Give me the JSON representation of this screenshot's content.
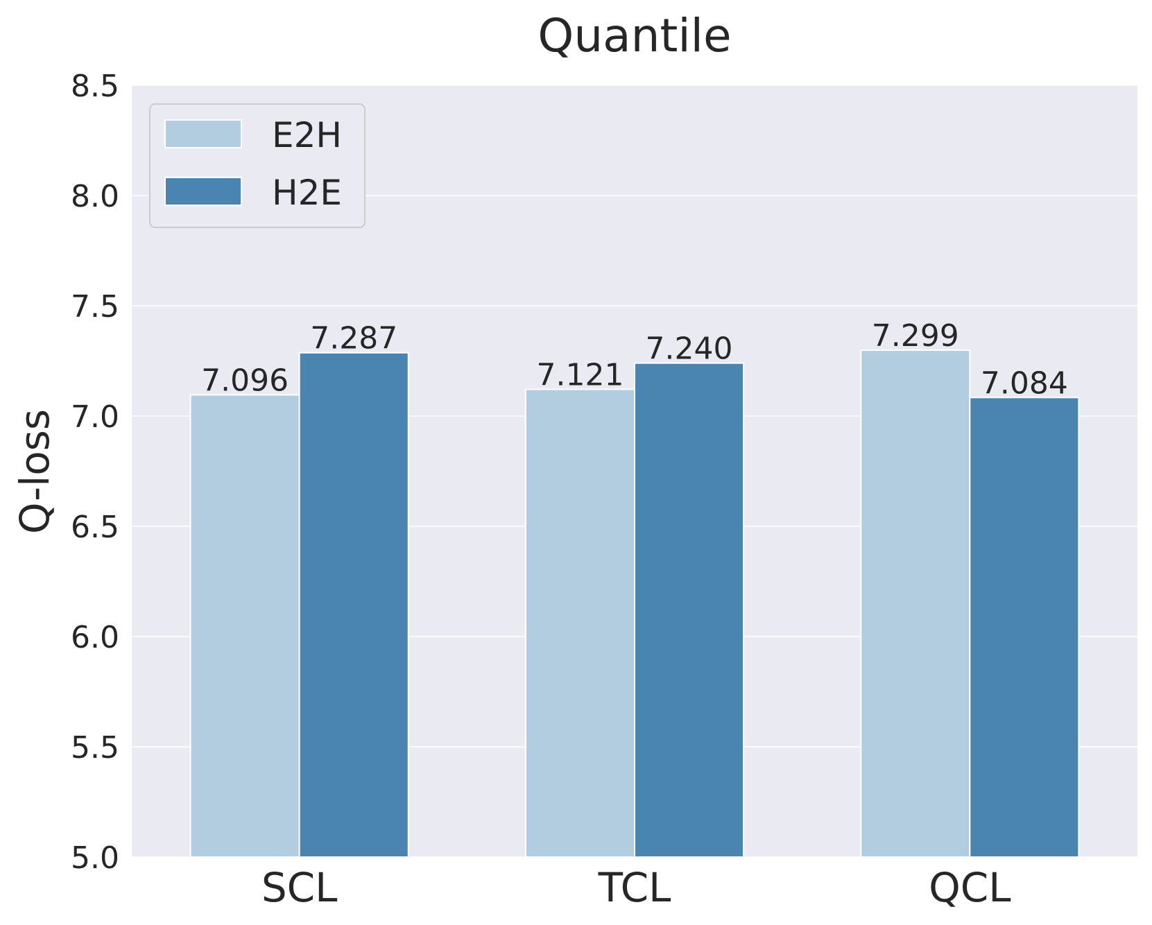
{
  "chart_data": {
    "type": "bar",
    "title": "Quantile",
    "xlabel": "",
    "ylabel": "Q-loss",
    "ylim": [
      5.0,
      8.5
    ],
    "yticks": [
      "5.0",
      "5.5",
      "6.0",
      "6.5",
      "7.0",
      "7.5",
      "8.0",
      "8.5"
    ],
    "categories": [
      "SCL",
      "TCL",
      "QCL"
    ],
    "series": [
      {
        "name": "E2H",
        "values": [
          7.096,
          7.121,
          7.299
        ],
        "labels": [
          "7.096",
          "7.121",
          "7.299"
        ],
        "color": "#b3cde0"
      },
      {
        "name": "H2E",
        "values": [
          7.287,
          7.24,
          7.084
        ],
        "labels": [
          "7.287",
          "7.240",
          "7.084"
        ],
        "color": "#4a84b1"
      }
    ],
    "grid": true,
    "legend_position": "top-left",
    "background_color": "#eaeaf2"
  }
}
